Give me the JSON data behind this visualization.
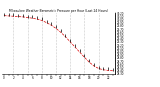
{
  "title": "Milwaukee Weather Barometric Pressure per Hour (Last 24 Hours)",
  "hours": [
    0,
    1,
    2,
    3,
    4,
    5,
    6,
    7,
    8,
    9,
    10,
    11,
    12,
    13,
    14,
    15,
    16,
    17,
    18,
    19,
    20,
    21,
    22,
    23
  ],
  "pressure": [
    30.12,
    30.11,
    30.1,
    30.09,
    30.08,
    30.06,
    30.04,
    30.01,
    29.97,
    29.9,
    29.82,
    29.72,
    29.6,
    29.46,
    29.3,
    29.14,
    28.98,
    28.82,
    28.67,
    28.55,
    28.47,
    28.43,
    28.41,
    28.4
  ],
  "line_color": "#dd0000",
  "marker_color": "#000000",
  "bg_color": "#ffffff",
  "grid_color": "#999999",
  "ylabel_color": "#000000",
  "ylim_min": 28.3,
  "ylim_max": 30.2,
  "ytick_step": 0.1,
  "grid_hours": [
    2,
    5,
    8,
    11,
    14,
    17,
    20
  ]
}
